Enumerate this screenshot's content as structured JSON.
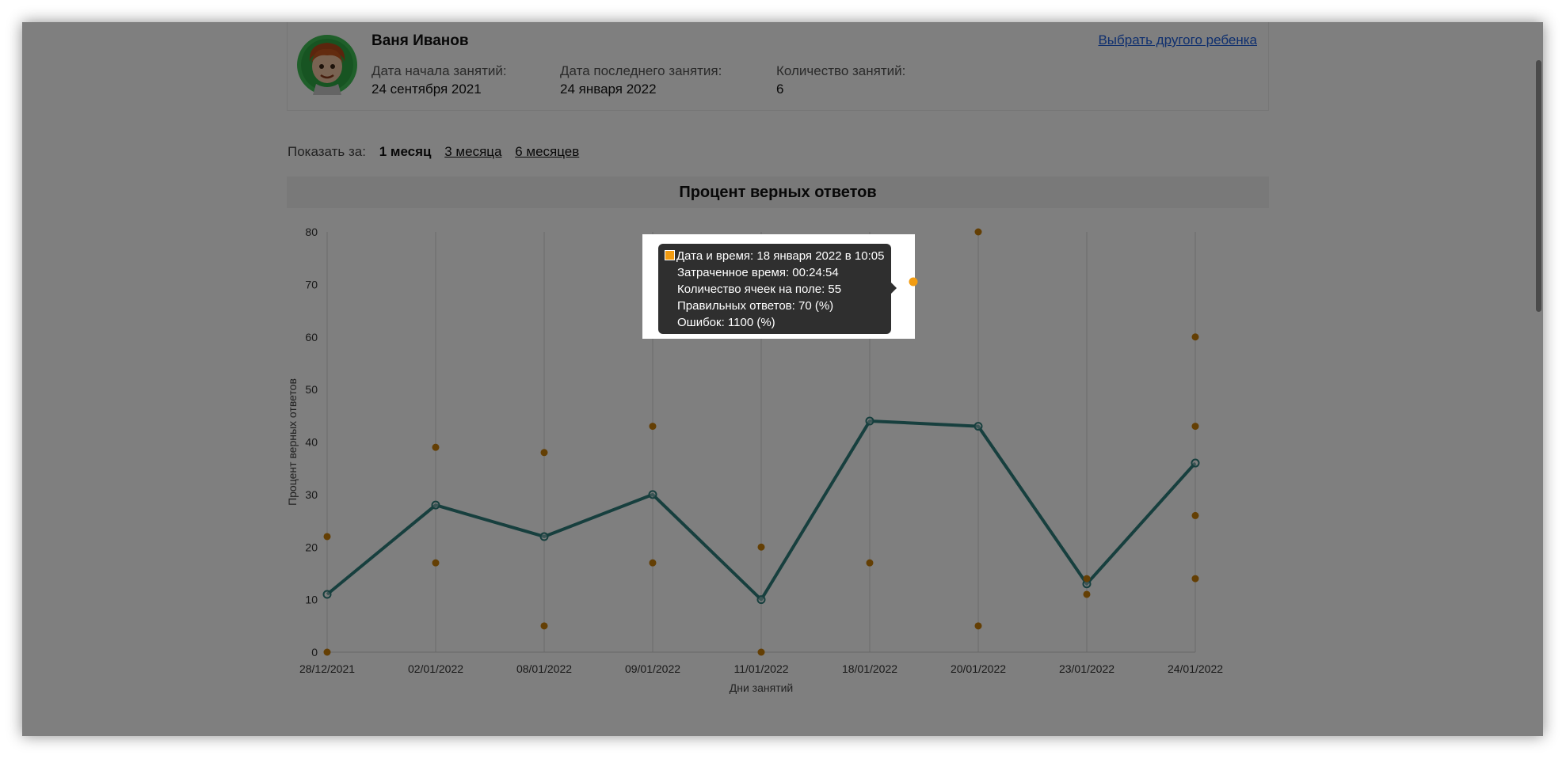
{
  "profile": {
    "name": "Ваня Иванов",
    "start_label": "Дата начала занятий:",
    "start_value": "24 сентября 2021",
    "last_label": "Дата последнего занятия:",
    "last_value": "24 января 2022",
    "count_label": "Количество занятий:",
    "count_value": "6",
    "change_child_link": "Выбрать другого ребенка"
  },
  "period": {
    "label": "Показать за:",
    "options": [
      "1 месяц",
      "3 месяца",
      "6 месяцев"
    ],
    "active": "1 месяц"
  },
  "colors": {
    "line_series": "#2e7f7d",
    "point_series": "#c87e08",
    "tooltip_marker": "#f29c12",
    "link": "#1f5fdc"
  },
  "chart_data": {
    "type": "line",
    "title": "Процент верных ответов",
    "xlabel": "Дни занятий",
    "ylabel": "Процент верных ответов",
    "ylim": [
      0,
      80
    ],
    "yticks": [
      0,
      10,
      20,
      30,
      40,
      50,
      60,
      70,
      80
    ],
    "grid": "vertical",
    "categories": [
      "28/12/2021",
      "02/01/2022",
      "08/01/2022",
      "09/01/2022",
      "11/01/2022",
      "18/01/2022",
      "20/01/2022",
      "23/01/2022",
      "24/01/2022"
    ],
    "series": [
      {
        "kind": "line",
        "values": [
          11,
          28,
          22,
          30,
          10,
          44,
          43,
          13,
          36
        ]
      },
      {
        "kind": "points",
        "points": [
          {
            "x": "28/12/2021",
            "y": 22
          },
          {
            "x": "28/12/2021",
            "y": 0
          },
          {
            "x": "02/01/2022",
            "y": 39
          },
          {
            "x": "02/01/2022",
            "y": 17
          },
          {
            "x": "08/01/2022",
            "y": 38
          },
          {
            "x": "08/01/2022",
            "y": 5
          },
          {
            "x": "09/01/2022",
            "y": 43
          },
          {
            "x": "09/01/2022",
            "y": 17
          },
          {
            "x": "11/01/2022",
            "y": 20
          },
          {
            "x": "11/01/2022",
            "y": 0
          },
          {
            "x": "18/01/2022",
            "y": 70
          },
          {
            "x": "18/01/2022",
            "y": 17
          },
          {
            "x": "20/01/2022",
            "y": 80
          },
          {
            "x": "20/01/2022",
            "y": 5
          },
          {
            "x": "23/01/2022",
            "y": 14
          },
          {
            "x": "23/01/2022",
            "y": 11
          },
          {
            "x": "24/01/2022",
            "y": 60
          },
          {
            "x": "24/01/2022",
            "y": 43
          },
          {
            "x": "24/01/2022",
            "y": 26
          },
          {
            "x": "24/01/2022",
            "y": 14
          }
        ]
      }
    ],
    "tooltip": {
      "point": {
        "x": "18/01/2022",
        "y": 70
      },
      "lines": [
        "Дата и время: 18 января 2022 в 10:05",
        "Затраченное время: 00:24:54",
        "Количество ячеек на поле: 55",
        "Правильных ответов: 70 (%)",
        "Ошибок: 1100 (%)"
      ]
    }
  }
}
